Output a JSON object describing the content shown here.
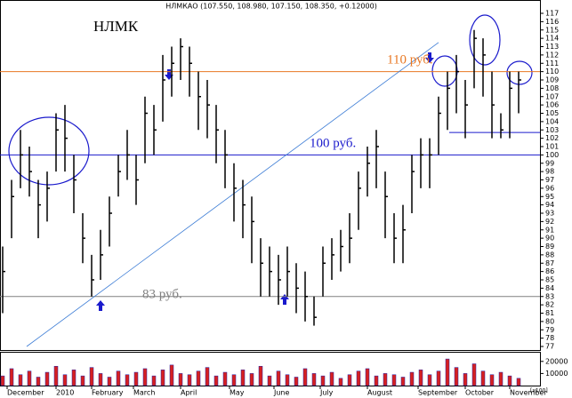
{
  "chart_data": {
    "type": "ohlc",
    "header": "НЛМКАО (107.550, 108.980, 107.150, 108.350, +0.12000)",
    "title": "НЛМК",
    "color": "#000000",
    "high": [
      89,
      97,
      103,
      101,
      97,
      98,
      105,
      106,
      100,
      93,
      88,
      91,
      95,
      100,
      103,
      100,
      107,
      106,
      112,
      113,
      114,
      113,
      110,
      109,
      106,
      103,
      99,
      97,
      95,
      90,
      89,
      88,
      89,
      87,
      86,
      83,
      89,
      90,
      91,
      93,
      98,
      101,
      103,
      98,
      93,
      94,
      100,
      102,
      102,
      107,
      110,
      112,
      109,
      115,
      114,
      110,
      105,
      110,
      110
    ],
    "low": [
      81,
      90,
      96,
      95,
      90,
      92,
      98,
      98,
      93,
      87,
      83,
      85,
      89,
      95,
      97,
      94,
      99,
      100,
      104,
      107,
      109,
      107,
      103,
      102,
      99,
      96,
      92,
      90,
      87,
      83,
      83,
      82,
      83,
      81,
      80,
      79.5,
      83,
      85,
      86,
      87,
      91,
      95,
      96,
      90,
      87,
      87,
      93,
      96,
      96,
      100,
      103,
      105,
      102,
      108,
      107,
      102,
      102,
      102,
      105
    ],
    "close": [
      86,
      95,
      100,
      98,
      94,
      96,
      103,
      102,
      97,
      90,
      85,
      88,
      93,
      98,
      100,
      97,
      105,
      103,
      109,
      111,
      113,
      111,
      107,
      106,
      103,
      100,
      96,
      94,
      92,
      87,
      86,
      85,
      86,
      84,
      83,
      80.5,
      87,
      88,
      89,
      90,
      96,
      99,
      101,
      95,
      90,
      91,
      98,
      100,
      100,
      105,
      108,
      110,
      106,
      114,
      112,
      106,
      103,
      108,
      109
    ],
    "volume": [
      8000,
      14000,
      9000,
      12000,
      7000,
      11000,
      16000,
      9000,
      13000,
      8000,
      15000,
      10000,
      7000,
      12000,
      9000,
      11000,
      14000,
      8000,
      13000,
      17000,
      10000,
      9000,
      12000,
      15000,
      8000,
      11000,
      9000,
      13000,
      10000,
      16000,
      8000,
      12000,
      9000,
      7000,
      14000,
      10000,
      8000,
      11000,
      6000,
      9000,
      12000,
      14000,
      8000,
      10000,
      9000,
      7000,
      11000,
      13000,
      9000,
      12000,
      22000,
      15000,
      10000,
      18000,
      12000,
      9000,
      11000,
      8000,
      6000
    ],
    "ylim": [
      77,
      117
    ],
    "yticks": [
      77,
      78,
      79,
      80,
      81,
      82,
      83,
      84,
      85,
      86,
      87,
      88,
      89,
      90,
      91,
      92,
      93,
      94,
      95,
      96,
      97,
      98,
      99,
      100,
      101,
      102,
      103,
      104,
      105,
      106,
      107,
      108,
      109,
      110,
      111,
      112,
      113,
      114,
      115,
      116,
      117
    ],
    "volume_ylim": [
      0,
      25000
    ],
    "volume_yticks": [
      10000,
      20000
    ],
    "volume_unit": "[x100]",
    "xticks": [
      {
        "value": 0.5,
        "label": "December"
      },
      {
        "value": 6,
        "label": "2010"
      },
      {
        "value": 10,
        "label": "February"
      },
      {
        "value": 14.7,
        "label": "March"
      },
      {
        "value": 20,
        "label": "April"
      },
      {
        "value": 25.5,
        "label": "May"
      },
      {
        "value": 30.5,
        "label": "June"
      },
      {
        "value": 35.7,
        "label": "July"
      },
      {
        "value": 41,
        "label": "August"
      },
      {
        "value": 46.7,
        "label": "September"
      },
      {
        "value": 52,
        "label": "October"
      },
      {
        "value": 57,
        "label": "November"
      }
    ],
    "reference_lines": [
      {
        "value": 110,
        "label": "110 руб.",
        "color": "#e87722"
      },
      {
        "value": 100,
        "label": "100 руб.",
        "color": "#1a1acc"
      },
      {
        "value": 83,
        "label": "83 руб.",
        "color": "#808080"
      }
    ],
    "support_line": 102.7,
    "trend_line": {
      "x": [
        2.7,
        49
      ],
      "y": [
        77,
        113.5
      ]
    }
  }
}
